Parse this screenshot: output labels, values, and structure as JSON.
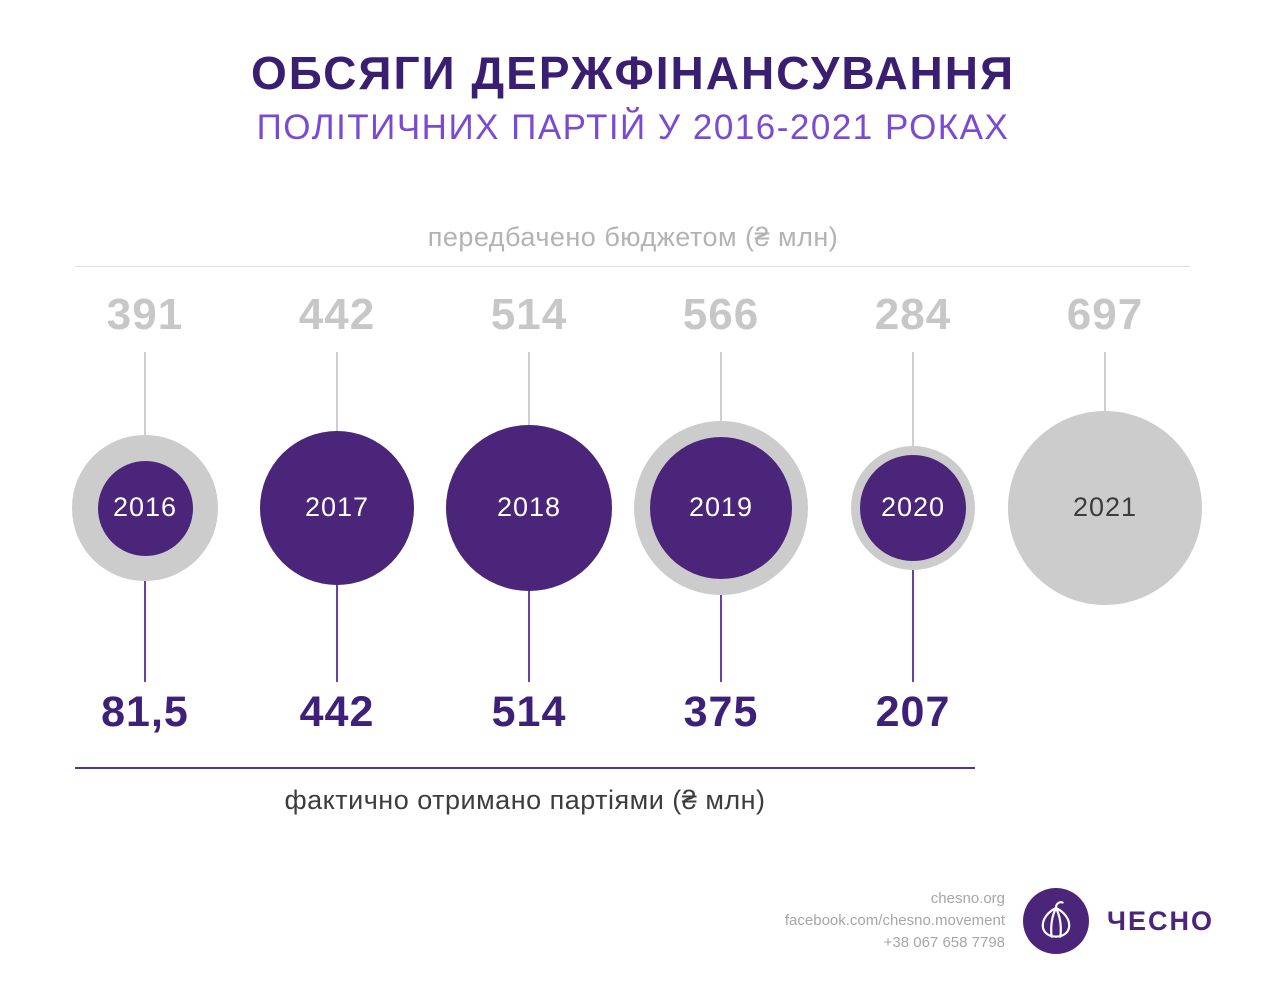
{
  "header": {
    "title": "ОБСЯГИ ДЕРЖФІНАНСУВАННЯ",
    "subtitle": "ПОЛІТИЧНИХ ПАРТІЙ У 2016-2021 РОКАХ"
  },
  "chart_data": {
    "type": "bubble",
    "top_axis_label": "передбачено бюджетом (₴ млн)",
    "bottom_axis_label": "фактично отримано партіями (₴ млн)",
    "unit": "₴ млн",
    "categories": [
      "2016",
      "2017",
      "2018",
      "2019",
      "2020",
      "2021"
    ],
    "series": [
      {
        "name": "передбачено бюджетом",
        "values": [
          391,
          442,
          514,
          566,
          284,
          697
        ],
        "labels": [
          "391",
          "442",
          "514",
          "566",
          "284",
          "697"
        ],
        "color": "#cccccc"
      },
      {
        "name": "фактично отримано партіями",
        "values": [
          81.5,
          442,
          514,
          375,
          207,
          null
        ],
        "labels": [
          "81,5",
          "442",
          "514",
          "375",
          "207",
          ""
        ],
        "color": "#4a2579"
      }
    ],
    "layout": {
      "budget_labels_position": "top",
      "received_labels_position": "bottom",
      "size_encoding": "area proportional to value"
    }
  },
  "colors": {
    "title": "#3a1e72",
    "subtitle": "#7b4ad2",
    "bubble_purple": "#4a2579",
    "bubble_gray": "#cccccc",
    "budget_value_gray": "#c7c7c7",
    "received_value_purple": "#3e2078",
    "year_on_purple": "#ffffff",
    "year_on_gray": "#3c3c3c"
  },
  "footer": {
    "website": "chesno.org",
    "facebook": "facebook.com/chesno.movement",
    "phone": "+38 067 658 7798",
    "logo_text": "ЧЕСНО"
  }
}
